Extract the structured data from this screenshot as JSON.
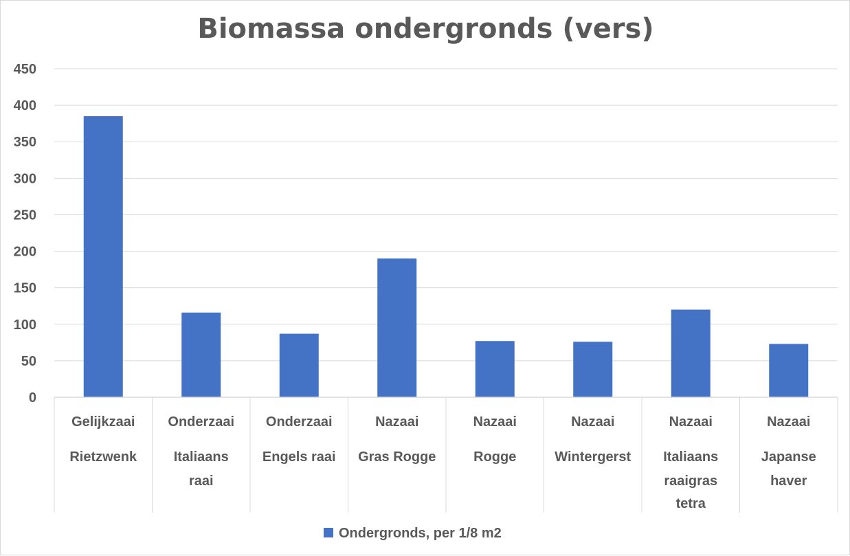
{
  "chart_data": {
    "type": "bar",
    "title": "Biomassa ondergronds (vers)",
    "xlabel": "",
    "ylabel": "",
    "ylim": [
      0,
      450
    ],
    "yticks": [
      0,
      50,
      100,
      150,
      200,
      250,
      300,
      350,
      400,
      450
    ],
    "grid": true,
    "legend_position": "bottom",
    "categories": [
      [
        "Gelijkzaai",
        "Rietzwenk"
      ],
      [
        "Onderzaai",
        "Italiaans",
        "raai"
      ],
      [
        "Onderzaai",
        "Engels raai"
      ],
      [
        "Nazaai",
        "Gras Rogge"
      ],
      [
        "Nazaai",
        "Rogge"
      ],
      [
        "Nazaai",
        "Wintergerst"
      ],
      [
        "Nazaai",
        "Italiaans",
        "raaigras",
        "tetra"
      ],
      [
        "Nazaai",
        "Japanse",
        "haver"
      ]
    ],
    "series": [
      {
        "name": "Ondergronds, per 1/8 m2",
        "color": "#4472c4",
        "values": [
          385,
          116,
          87,
          190,
          77,
          76,
          120,
          73
        ]
      }
    ]
  }
}
